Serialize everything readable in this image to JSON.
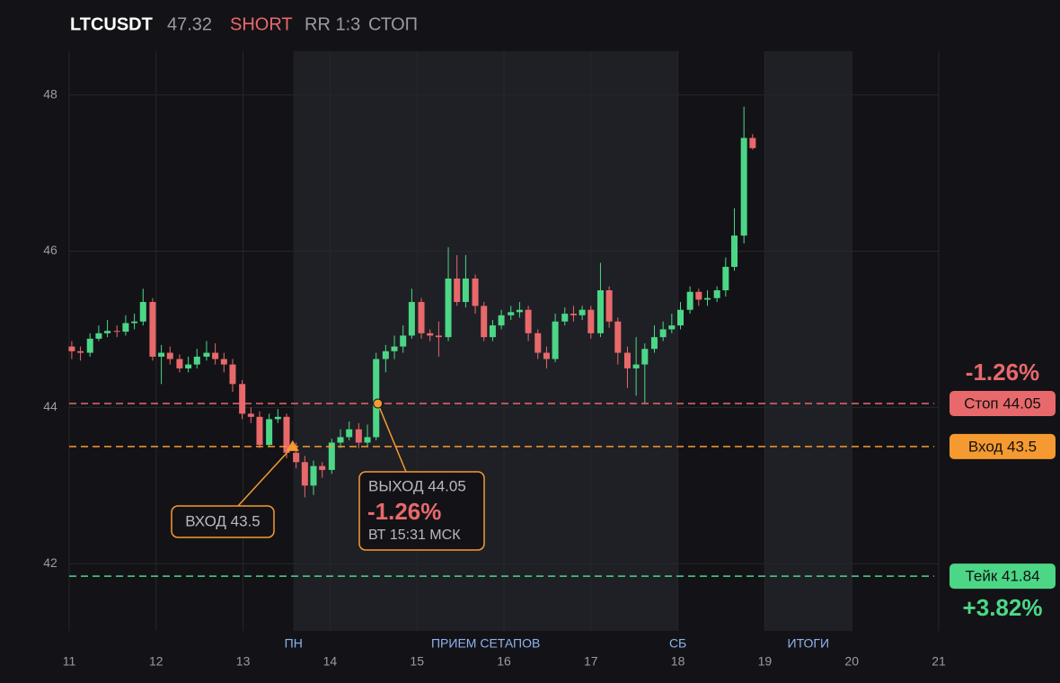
{
  "chart_data": {
    "type": "candlestick",
    "header": {
      "symbol": "LTCUSDT",
      "price": 47.32,
      "side": "SHORT",
      "rr": "RR 1:3",
      "status": "СТОП"
    },
    "xlim": [
      11,
      21
    ],
    "xticks": [
      11,
      12,
      13,
      14,
      15,
      16,
      17,
      18,
      19,
      20,
      21
    ],
    "ylim": [
      41.14,
      48.56
    ],
    "yticks": [
      42,
      44,
      46,
      48
    ],
    "grid": true,
    "up_color": "#4cd787",
    "down_color": "#e8696b",
    "bands": [
      {
        "start": 13.58,
        "end": 18
      },
      {
        "start": 19,
        "end": 20
      }
    ],
    "band_labels": [
      {
        "text": "ПН",
        "x": 13.58
      },
      {
        "text": "ПРИЕМ СЕТАПОВ",
        "x": 15.79
      },
      {
        "text": "СБ",
        "x": 18
      },
      {
        "text": "ИТОГИ",
        "x": 19.5
      }
    ],
    "x": [
      11.03,
      11.13,
      11.24,
      11.34,
      11.44,
      11.55,
      11.65,
      11.75,
      11.85,
      11.96,
      12.06,
      12.16,
      12.27,
      12.37,
      12.47,
      12.58,
      12.68,
      12.78,
      12.88,
      12.99,
      13.09,
      13.19,
      13.3,
      13.4,
      13.5,
      13.61,
      13.71,
      13.81,
      13.91,
      14.02,
      14.12,
      14.22,
      14.33,
      14.43,
      14.53,
      14.64,
      14.74,
      14.84,
      14.94,
      15.05,
      15.15,
      15.25,
      15.36,
      15.46,
      15.56,
      15.67,
      15.77,
      15.87,
      15.97,
      16.08,
      16.18,
      16.28,
      16.39,
      16.49,
      16.59,
      16.7,
      16.8,
      16.9,
      17.0,
      17.11,
      17.21,
      17.31,
      17.42,
      17.52,
      17.62,
      17.73,
      17.83,
      17.93,
      18.03,
      18.14,
      18.24,
      18.34,
      18.45,
      18.55,
      18.65,
      18.76,
      18.86
    ],
    "open": [
      44.78,
      44.72,
      44.7,
      44.88,
      44.95,
      44.98,
      44.97,
      45.08,
      45.1,
      45.35,
      44.65,
      44.7,
      44.62,
      44.5,
      44.55,
      44.65,
      44.7,
      44.62,
      44.55,
      44.3,
      43.92,
      43.88,
      43.52,
      43.85,
      43.88,
      43.42,
      43.3,
      43.0,
      43.25,
      43.2,
      43.55,
      43.62,
      43.72,
      43.55,
      43.62,
      44.62,
      44.72,
      44.78,
      44.92,
      45.35,
      44.95,
      44.92,
      44.9,
      45.65,
      45.35,
      45.65,
      45.3,
      44.9,
      45.05,
      45.18,
      45.22,
      45.25,
      44.95,
      44.7,
      44.62,
      45.1,
      45.2,
      45.18,
      45.25,
      44.95,
      45.5,
      45.1,
      44.7,
      44.5,
      44.55,
      44.75,
      44.9,
      45.0,
      45.05,
      45.25,
      45.48,
      45.38,
      45.4,
      45.5,
      45.8,
      46.2,
      47.45
    ],
    "high": [
      44.85,
      44.78,
      44.95,
      45.05,
      45.12,
      45.05,
      45.18,
      45.2,
      45.52,
      45.4,
      44.8,
      44.78,
      44.68,
      44.65,
      44.75,
      44.85,
      44.82,
      44.7,
      44.62,
      44.35,
      44.0,
      43.95,
      43.92,
      43.98,
      43.92,
      43.55,
      43.38,
      43.32,
      43.3,
      43.6,
      43.72,
      43.82,
      43.8,
      43.78,
      44.7,
      44.8,
      44.92,
      45.05,
      45.52,
      45.4,
      45.0,
      45.1,
      46.05,
      45.95,
      45.95,
      45.7,
      45.35,
      45.12,
      45.25,
      45.3,
      45.35,
      45.3,
      45.0,
      44.78,
      45.2,
      45.28,
      45.3,
      45.3,
      45.3,
      45.85,
      45.55,
      45.15,
      44.78,
      44.9,
      44.82,
      45.05,
      45.1,
      45.2,
      45.35,
      45.55,
      45.52,
      45.5,
      45.55,
      45.92,
      46.55,
      47.85,
      47.5
    ],
    "low": [
      44.62,
      44.6,
      44.65,
      44.85,
      44.9,
      44.9,
      44.92,
      45.0,
      45.05,
      44.6,
      44.3,
      44.55,
      44.45,
      44.45,
      44.5,
      44.6,
      44.55,
      44.45,
      44.2,
      43.85,
      43.8,
      43.48,
      43.5,
      43.8,
      43.35,
      43.22,
      42.85,
      42.88,
      43.1,
      43.15,
      43.48,
      43.58,
      43.48,
      43.5,
      43.58,
      44.45,
      44.62,
      44.7,
      44.88,
      44.88,
      44.85,
      44.65,
      44.85,
      45.3,
      45.28,
      45.2,
      44.85,
      44.85,
      45.0,
      45.12,
      45.15,
      44.85,
      44.62,
      44.5,
      44.58,
      45.05,
      45.1,
      45.12,
      44.88,
      44.9,
      45.02,
      44.55,
      44.25,
      44.15,
      44.05,
      44.7,
      44.85,
      44.95,
      45.0,
      45.2,
      45.3,
      45.3,
      45.35,
      45.42,
      45.75,
      46.1,
      47.3
    ],
    "close": [
      44.72,
      44.7,
      44.88,
      44.95,
      44.98,
      44.97,
      45.08,
      45.1,
      45.35,
      44.65,
      44.7,
      44.62,
      44.5,
      44.55,
      44.65,
      44.7,
      44.62,
      44.55,
      44.3,
      43.92,
      43.88,
      43.52,
      43.85,
      43.88,
      43.42,
      43.3,
      43.0,
      43.25,
      43.2,
      43.55,
      43.62,
      43.72,
      43.55,
      43.62,
      44.62,
      44.72,
      44.78,
      44.92,
      45.35,
      44.95,
      44.92,
      44.9,
      45.65,
      45.35,
      45.65,
      45.3,
      44.9,
      45.05,
      45.18,
      45.22,
      45.25,
      44.95,
      44.7,
      44.62,
      45.1,
      45.2,
      45.18,
      45.25,
      44.95,
      45.5,
      45.1,
      44.7,
      44.5,
      44.55,
      44.75,
      44.9,
      45.0,
      45.05,
      45.25,
      45.48,
      45.38,
      45.4,
      45.5,
      45.8,
      46.2,
      47.45,
      47.32
    ],
    "levels": [
      {
        "value": 44.05,
        "label": "Стоп 44.05",
        "color": "#e8696b",
        "pct": "-1.26%"
      },
      {
        "value": 43.5,
        "label": "Вход 43.5",
        "color": "#f59a30"
      },
      {
        "value": 41.84,
        "label": "Тейк 41.84",
        "color": "#4cd787",
        "pct": "+3.82%"
      }
    ],
    "entry": {
      "x": 13.57,
      "y": 43.5,
      "label": "ВХОД 43.5"
    },
    "exit": {
      "x": 14.55,
      "y": 44.05,
      "label": "ВЫХОД 44.05",
      "pnl": "-1.26%",
      "time": "ВТ 15:31 МСК"
    }
  }
}
